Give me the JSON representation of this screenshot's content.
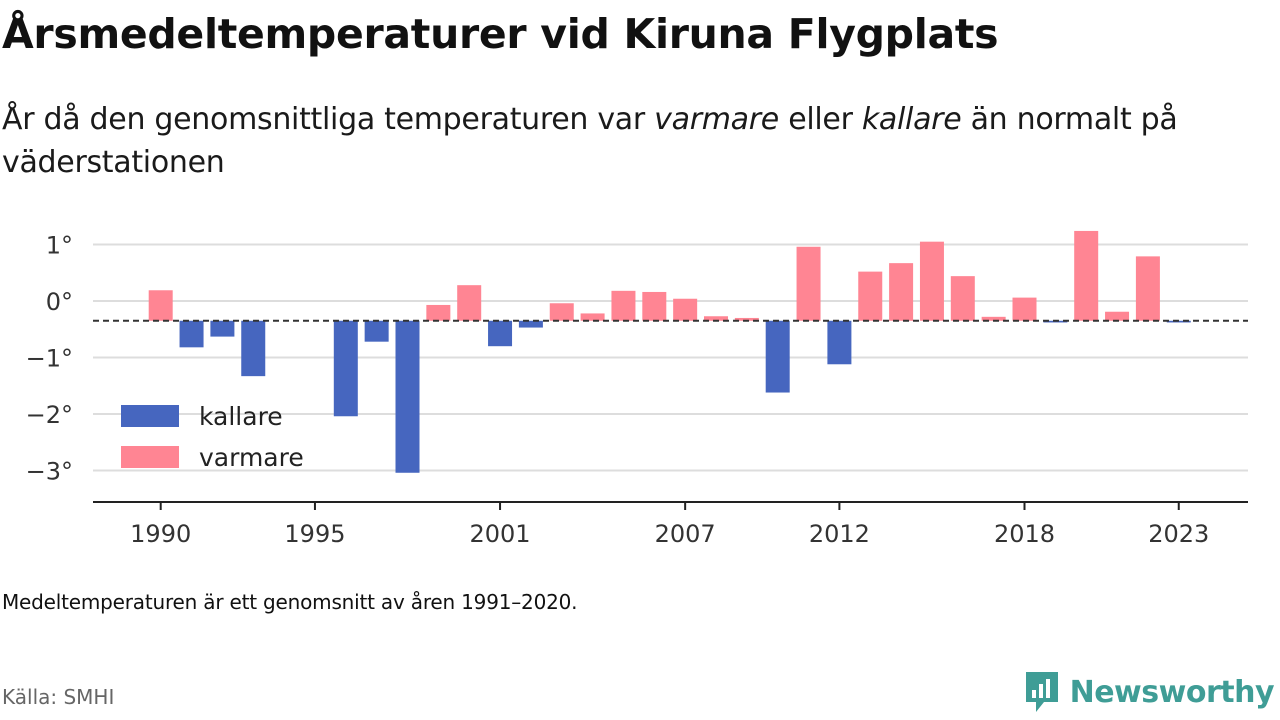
{
  "header": {
    "title": "Årsmedeltemperaturer vid Kiruna Flygplats",
    "subtitle_part1": "År då den genomsnittliga temperaturen var ",
    "subtitle_em1": "varmare",
    "subtitle_part2": " eller ",
    "subtitle_em2": "kallare",
    "subtitle_part3": " än normalt på väderstationen"
  },
  "footer": {
    "note": "Medeltemperaturen är ett genomsnitt av åren 1991–2020.",
    "source": "Källa: SMHI",
    "brand": "Newsworthy",
    "brand_color": "#3f9d96"
  },
  "chart_data": {
    "type": "bar",
    "title": "Årsmedeltemperaturer vid Kiruna Flygplats",
    "xlabel": "",
    "ylabel": "",
    "x_tick_labels": [
      "1990",
      "1995",
      "2001",
      "2007",
      "2012",
      "2018",
      "2023"
    ],
    "y_ticks": [
      1,
      0,
      -1,
      -2,
      -3
    ],
    "y_tick_labels": [
      "1°",
      "0°",
      "−1°",
      "−2°",
      "−3°"
    ],
    "ylim": [
      -3.55,
      1.2
    ],
    "xlim": [
      1988,
      2026
    ],
    "baseline": -0.35,
    "baseline_style": "dashed",
    "grid": "horizontal",
    "legend_position": "lower-left",
    "colors": {
      "kallare": "#4666bf",
      "varmare": "#ff8593"
    },
    "series": [
      {
        "name": "kallare",
        "key": "kallare"
      },
      {
        "name": "varmare",
        "key": "varmare"
      }
    ],
    "x": [
      1990,
      1991,
      1992,
      1993,
      1996,
      1997,
      1998,
      1999,
      2000,
      2001,
      2002,
      2003,
      2004,
      2005,
      2006,
      2007,
      2008,
      2009,
      2010,
      2011,
      2012,
      2013,
      2014,
      2015,
      2016,
      2017,
      2018,
      2019,
      2020,
      2021,
      2022,
      2023
    ],
    "values": [
      0.19,
      -0.82,
      -0.63,
      -1.33,
      -2.04,
      -0.72,
      -3.04,
      -0.07,
      0.28,
      -0.8,
      -0.47,
      -0.04,
      -0.22,
      0.18,
      0.16,
      0.04,
      -0.27,
      -0.3,
      -1.62,
      0.96,
      -1.12,
      0.52,
      0.67,
      1.05,
      0.44,
      -0.28,
      0.06,
      -0.38,
      1.24,
      -0.19,
      0.79,
      -0.38
    ]
  }
}
